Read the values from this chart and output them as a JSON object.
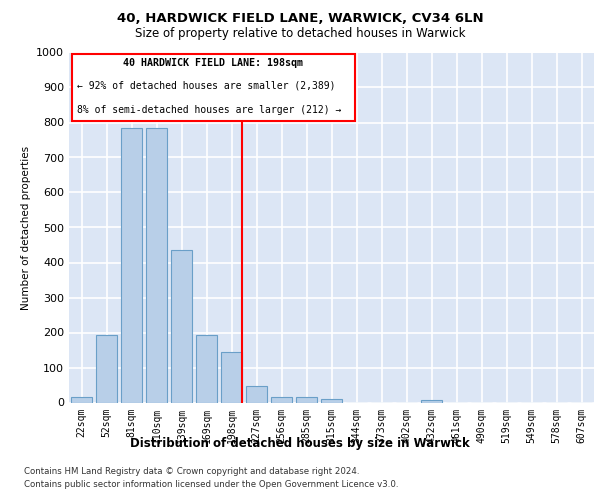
{
  "title1": "40, HARDWICK FIELD LANE, WARWICK, CV34 6LN",
  "title2": "Size of property relative to detached houses in Warwick",
  "xlabel": "Distribution of detached houses by size in Warwick",
  "ylabel": "Number of detached properties",
  "categories": [
    "22sqm",
    "52sqm",
    "81sqm",
    "110sqm",
    "139sqm",
    "169sqm",
    "198sqm",
    "227sqm",
    "256sqm",
    "285sqm",
    "315sqm",
    "344sqm",
    "373sqm",
    "402sqm",
    "432sqm",
    "461sqm",
    "490sqm",
    "519sqm",
    "549sqm",
    "578sqm",
    "607sqm"
  ],
  "values": [
    15,
    193,
    785,
    785,
    437,
    193,
    143,
    48,
    15,
    15,
    10,
    0,
    0,
    0,
    8,
    0,
    0,
    0,
    0,
    0,
    0
  ],
  "bar_color": "#b8cfe8",
  "bar_edge_color": "#6a9fc8",
  "red_line_index": 6,
  "annotation_line1": "40 HARDWICK FIELD LANE: 198sqm",
  "annotation_line2": "← 92% of detached houses are smaller (2,389)",
  "annotation_line3": "8% of semi-detached houses are larger (212) →",
  "ylim": [
    0,
    1000
  ],
  "yticks": [
    0,
    100,
    200,
    300,
    400,
    500,
    600,
    700,
    800,
    900,
    1000
  ],
  "background_color": "#dce6f5",
  "grid_color": "#ffffff",
  "footnote1": "Contains HM Land Registry data © Crown copyright and database right 2024.",
  "footnote2": "Contains public sector information licensed under the Open Government Licence v3.0."
}
